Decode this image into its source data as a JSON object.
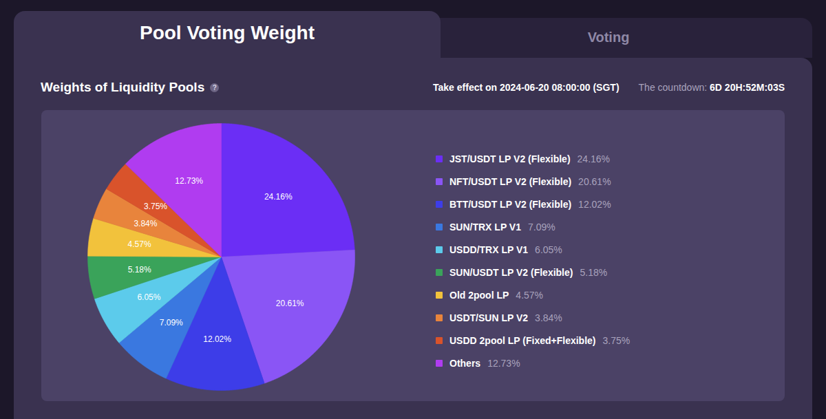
{
  "header": {
    "tabs": [
      "Pool Voting Weight",
      "Voting"
    ],
    "help": "?",
    "effective": "Take effect on 2024-06-20 08:00:00 (SGT)",
    "countdown_label": "The countdown:",
    "countdown": "6D 20H:52M:03S"
  },
  "chart_data": {
    "type": "pie",
    "title": "Weights of Liquidity Pools",
    "categories": [
      "JST/USDT LP V2 (Flexible)",
      "NFT/USDT LP V2 (Flexible)",
      "BTT/USDT LP V2 (Flexible)",
      "SUN/TRX LP V1",
      "USDD/TRX LP V1",
      "SUN/USDT LP V2 (Flexible)",
      "Old 2pool LP",
      "USDT/SUN LP V2",
      "USDD 2pool LP (Fixed+Flexible)",
      "Others"
    ],
    "values": [
      24.16,
      20.61,
      12.02,
      7.09,
      6.05,
      5.18,
      4.57,
      3.84,
      3.75,
      12.73
    ],
    "value_labels": [
      "24.16%",
      "20.61%",
      "12.02%",
      "7.09%",
      "6.05%",
      "5.18%",
      "4.57%",
      "3.84%",
      "3.75%",
      "12.73%"
    ],
    "colors": [
      "#6b2ef5",
      "#8a55f5",
      "#3d3de8",
      "#3a78e0",
      "#5ccbeb",
      "#3aa35a",
      "#f2c23c",
      "#e8843c",
      "#d9532b",
      "#b03cf0"
    ],
    "data_labels": true,
    "legend": "right",
    "tick_labels": false
  }
}
